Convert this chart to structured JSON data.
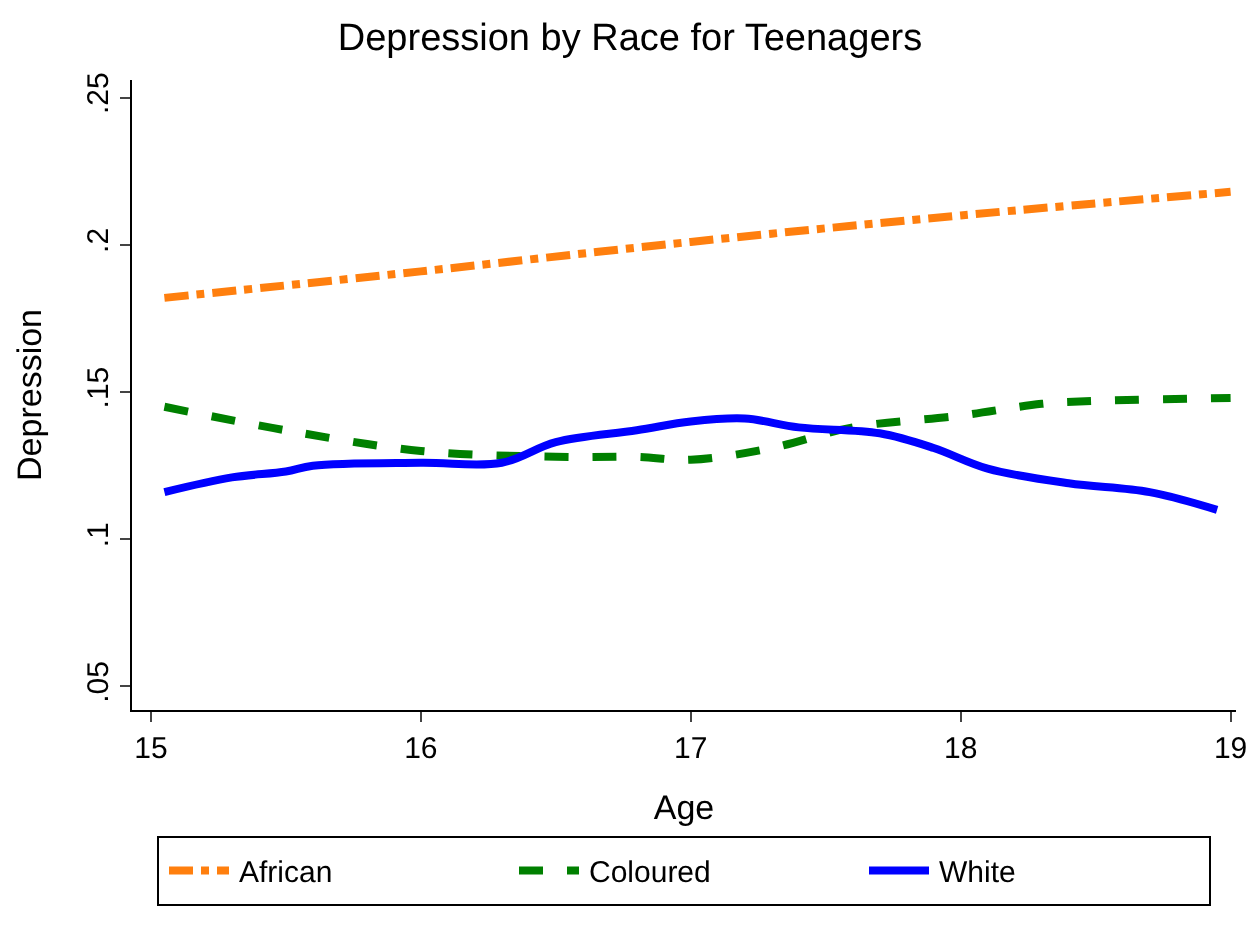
{
  "chart_data": {
    "type": "line",
    "title": "Depression by Race for Teenagers",
    "xlabel": "Age",
    "ylabel": "Depression",
    "xlim": [
      14.93,
      19.02
    ],
    "xticks": [
      15,
      16,
      17,
      18,
      19
    ],
    "ylim": [
      0.042,
      0.256
    ],
    "yticks": [
      {
        "value": 0.05,
        "label": ".05"
      },
      {
        "value": 0.1,
        "label": ".1"
      },
      {
        "value": 0.15,
        "label": ".15"
      },
      {
        "value": 0.2,
        "label": ".2"
      },
      {
        "value": 0.25,
        "label": ".25"
      }
    ],
    "legend": "bottom",
    "marker": "none",
    "series": [
      {
        "name": "African",
        "color": "#ff7f0e",
        "line_style": "dashdot",
        "x": [
          15.05,
          16,
          17,
          18,
          19
        ],
        "values": [
          0.182,
          0.191,
          0.201,
          0.21,
          0.218
        ]
      },
      {
        "name": "Coloured",
        "color": "#008000",
        "line_style": "dashed",
        "x": [
          15.05,
          15.5,
          16,
          16.5,
          16.8,
          17,
          17.3,
          17.6,
          18,
          18.3,
          18.5,
          19
        ],
        "values": [
          0.145,
          0.137,
          0.13,
          0.128,
          0.128,
          0.127,
          0.131,
          0.138,
          0.142,
          0.146,
          0.147,
          0.148
        ]
      },
      {
        "name": "White",
        "color": "#0000ff",
        "line_style": "solid",
        "x": [
          15.05,
          15.3,
          15.5,
          15.6,
          16,
          16.3,
          16.5,
          16.8,
          17,
          17.2,
          17.4,
          17.7,
          17.9,
          18.1,
          18.4,
          18.7,
          18.95
        ],
        "values": [
          0.116,
          0.121,
          0.123,
          0.125,
          0.126,
          0.126,
          0.133,
          0.137,
          0.14,
          0.141,
          0.138,
          0.136,
          0.131,
          0.124,
          0.119,
          0.116,
          0.11
        ]
      }
    ]
  }
}
